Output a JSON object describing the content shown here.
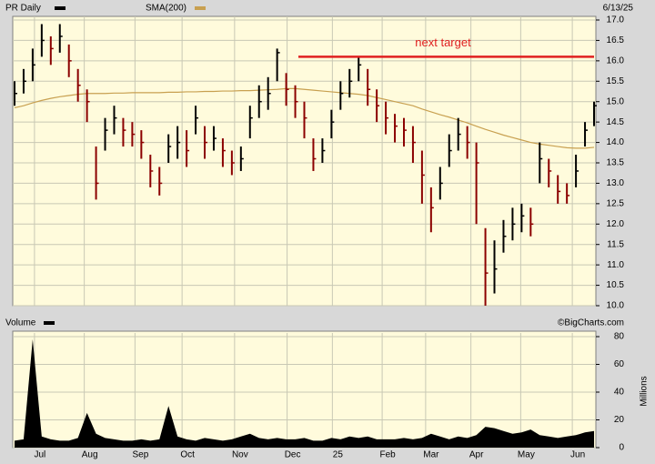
{
  "chart_data": [
    {
      "type": "ohlc",
      "date": "6/13/25",
      "credit": "©BigCharts.com",
      "categories": [
        null,
        null,
        null,
        null,
        null,
        null,
        null,
        null,
        null,
        null,
        null,
        null,
        null,
        null,
        null,
        null,
        null,
        null,
        null,
        null,
        null,
        null,
        null,
        null,
        null,
        null,
        null,
        null,
        null,
        null,
        null,
        null,
        null,
        null,
        null,
        null,
        null,
        null,
        null,
        null,
        null,
        null,
        null,
        null,
        null,
        null,
        null,
        null,
        null,
        null,
        null,
        null,
        null,
        null,
        null,
        null,
        null,
        null,
        null,
        null,
        null,
        null,
        null,
        null,
        null
      ],
      "series": [
        {
          "name": "PR Daily",
          "color": "#000000",
          "down_color": "#8b0000",
          "values": [
            15.2,
            15.5,
            15.9,
            16.5,
            16.3,
            16.6,
            16.0,
            15.4,
            15.0,
            13.0,
            14.3,
            14.6,
            14.3,
            14.2,
            14.0,
            13.3,
            13.0,
            13.9,
            14.0,
            13.8,
            14.6,
            14.0,
            14.1,
            13.8,
            13.5,
            13.6,
            14.6,
            15.0,
            15.2,
            16.2,
            15.3,
            15.0,
            14.6,
            13.6,
            13.8,
            14.5,
            15.2,
            15.5,
            15.9,
            15.3,
            14.9,
            14.6,
            14.4,
            14.3,
            14.0,
            13.2,
            12.4,
            13.0,
            13.8,
            14.2,
            14.0,
            13.5,
            10.8,
            10.9,
            11.7,
            12.0,
            12.2,
            12.0,
            13.6,
            13.3,
            12.8,
            12.7,
            13.3,
            14.3,
            14.9
          ],
          "high": [
            15.5,
            15.8,
            16.3,
            16.9,
            16.6,
            16.9,
            16.4,
            15.8,
            15.3,
            13.9,
            14.6,
            14.9,
            14.6,
            14.5,
            14.3,
            13.7,
            13.4,
            14.2,
            14.4,
            14.3,
            14.9,
            14.4,
            14.4,
            14.1,
            13.8,
            13.9,
            14.9,
            15.4,
            15.6,
            16.3,
            15.7,
            15.4,
            15.0,
            14.1,
            14.1,
            14.8,
            15.5,
            15.8,
            16.1,
            15.8,
            15.3,
            15.0,
            14.7,
            14.6,
            14.4,
            13.8,
            12.9,
            13.4,
            14.2,
            14.6,
            14.4,
            14.0,
            11.9,
            11.6,
            12.1,
            12.4,
            12.5,
            12.4,
            14.0,
            13.6,
            13.2,
            13.0,
            13.7,
            14.5,
            15.0
          ],
          "low": [
            14.9,
            15.2,
            15.5,
            16.1,
            15.9,
            16.2,
            15.6,
            15.0,
            14.5,
            12.6,
            13.8,
            14.2,
            13.9,
            13.9,
            13.6,
            12.9,
            12.7,
            13.5,
            13.6,
            13.4,
            14.2,
            13.6,
            13.8,
            13.4,
            13.2,
            13.3,
            14.1,
            14.6,
            14.8,
            15.5,
            14.9,
            14.6,
            14.1,
            13.3,
            13.5,
            14.1,
            14.8,
            15.1,
            15.5,
            14.9,
            14.5,
            14.2,
            14.0,
            13.9,
            13.5,
            12.5,
            11.8,
            12.6,
            13.4,
            13.8,
            13.6,
            12.0,
            10.0,
            10.3,
            11.3,
            11.6,
            11.8,
            11.7,
            13.0,
            12.9,
            12.5,
            12.5,
            12.9,
            13.9,
            14.4
          ]
        },
        {
          "name": "SMA(200)",
          "color": "#c8a050",
          "values": [
            14.85,
            14.9,
            14.97,
            15.03,
            15.08,
            15.12,
            15.15,
            15.18,
            15.2,
            15.2,
            15.2,
            15.21,
            15.21,
            15.22,
            15.22,
            15.22,
            15.22,
            15.23,
            15.23,
            15.24,
            15.24,
            15.25,
            15.25,
            15.26,
            15.26,
            15.27,
            15.27,
            15.28,
            15.29,
            15.3,
            15.32,
            15.32,
            15.3,
            15.28,
            15.26,
            15.24,
            15.22,
            15.2,
            15.18,
            15.15,
            15.1,
            15.05,
            15.0,
            14.95,
            14.9,
            14.82,
            14.75,
            14.68,
            14.62,
            14.55,
            14.48,
            14.4,
            14.32,
            14.25,
            14.18,
            14.12,
            14.06,
            14.0,
            13.96,
            13.93,
            13.9,
            13.87,
            13.86,
            13.86,
            13.88
          ]
        }
      ],
      "target": {
        "value": 16.1,
        "label": "next target",
        "color": "#e02020"
      },
      "ylim": [
        10,
        17
      ],
      "yticks": [
        {
          "value": 10,
          "label": "10.0"
        },
        10.5,
        {
          "value": 11,
          "label": "11.0"
        },
        11.5,
        {
          "value": 12,
          "label": "12.0"
        },
        12.5,
        {
          "value": 13,
          "label": "13.0"
        },
        13.5,
        {
          "value": 14,
          "label": "14.0"
        },
        14.5,
        {
          "value": 15,
          "label": "15.0"
        },
        15.5,
        {
          "value": 16,
          "label": "16.0"
        },
        16.5,
        {
          "value": 17,
          "label": "17.0"
        }
      ],
      "grid": true
    },
    {
      "type": "area",
      "title": "Volume",
      "ylabel": "Millions",
      "color": "#000000",
      "categories": [
        null,
        null,
        null,
        null,
        null,
        null,
        null,
        null,
        null,
        null,
        null,
        null,
        null,
        null,
        null,
        null,
        null,
        null,
        null,
        null,
        null,
        null,
        null,
        null,
        null,
        null,
        null,
        null,
        null,
        null,
        null,
        null,
        null,
        null,
        null,
        null,
        null,
        null,
        null,
        null,
        null,
        null,
        null,
        null,
        null,
        null,
        null,
        null,
        null,
        null,
        null,
        null,
        null,
        null,
        null,
        null,
        null,
        null,
        null,
        null,
        null,
        null,
        null,
        null,
        null
      ],
      "values": [
        5,
        6,
        78,
        8,
        6,
        5,
        5,
        7,
        25,
        10,
        7,
        6,
        5,
        5,
        6,
        5,
        6,
        30,
        8,
        6,
        5,
        7,
        6,
        5,
        6,
        8,
        10,
        7,
        6,
        7,
        6,
        6,
        7,
        5,
        5,
        7,
        6,
        8,
        7,
        8,
        6,
        6,
        6,
        7,
        6,
        7,
        10,
        8,
        6,
        8,
        7,
        9,
        15,
        14,
        12,
        10,
        11,
        13,
        9,
        8,
        7,
        8,
        9,
        11,
        12
      ],
      "ylim": [
        0,
        80
      ],
      "yticks": [
        0,
        20,
        40,
        60,
        80
      ],
      "xticks": [
        {
          "value": 2.2,
          "label": "Jul"
        },
        {
          "value": 7.7,
          "label": "Aug"
        },
        {
          "value": 13.3,
          "label": "Sep"
        },
        {
          "value": 18.5,
          "label": "Oct"
        },
        {
          "value": 24.3,
          "label": "Nov"
        },
        {
          "value": 30.1,
          "label": "Dec"
        },
        {
          "value": 35.1,
          "label": "25"
        },
        {
          "value": 40.6,
          "label": "Feb"
        },
        {
          "value": 45.4,
          "label": "Mar"
        },
        {
          "value": 50.4,
          "label": "Apr"
        },
        {
          "value": 55.9,
          "label": "May"
        },
        {
          "value": 61.6,
          "label": "Jun"
        }
      ],
      "grid": true
    }
  ]
}
